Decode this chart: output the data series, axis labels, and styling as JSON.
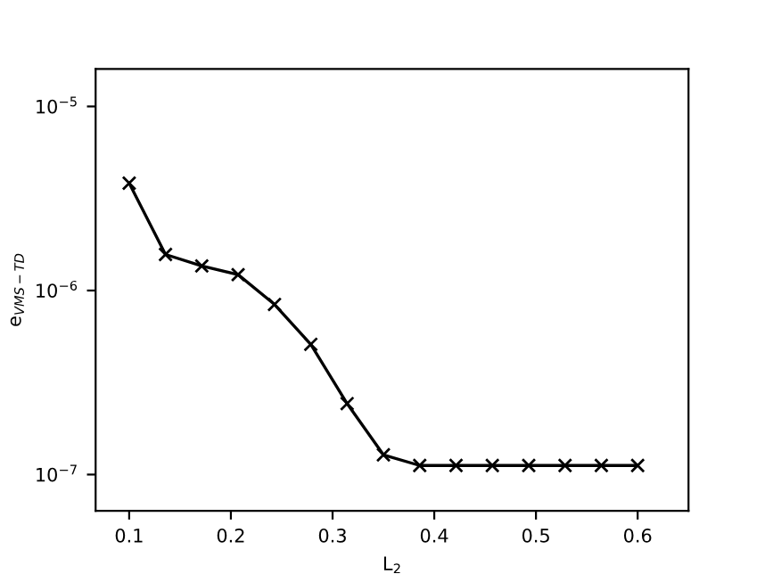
{
  "chart_data": {
    "type": "line",
    "xlabel": "L$_{2}$",
    "ylabel": "e$_{VMS−TD}$",
    "x": [
      0.1,
      0.1357,
      0.1714,
      0.2071,
      0.2429,
      0.2786,
      0.3143,
      0.35,
      0.3857,
      0.4214,
      0.4571,
      0.4929,
      0.5286,
      0.5643,
      0.6
    ],
    "series": [
      {
        "color": "#000000",
        "values": [
          3.83e-06,
          1.57e-06,
          1.36e-06,
          1.22e-06,
          8.4e-07,
          5.1e-07,
          2.43e-07,
          1.28e-07,
          1.12e-07,
          1.12e-07,
          1.12e-07,
          1.12e-07,
          1.12e-07,
          1.12e-07,
          1.12e-07
        ]
      }
    ],
    "log": "y",
    "marker": "cross",
    "line_style": "solid",
    "xlim": [
      0.067,
      0.65
    ],
    "ylim": [
      6.35e-08,
      1.6e-05
    ],
    "xticks": [
      0.1,
      0.2,
      0.3,
      0.4,
      0.5,
      0.6
    ],
    "yticks": [
      {
        "value": 1e-07,
        "label": "10$^{−7}$"
      },
      {
        "value": 1e-06,
        "label": "10$^{−6}$"
      },
      {
        "value": 1e-05,
        "label": "10$^{−5}$"
      }
    ],
    "grid": false,
    "legend": false
  }
}
